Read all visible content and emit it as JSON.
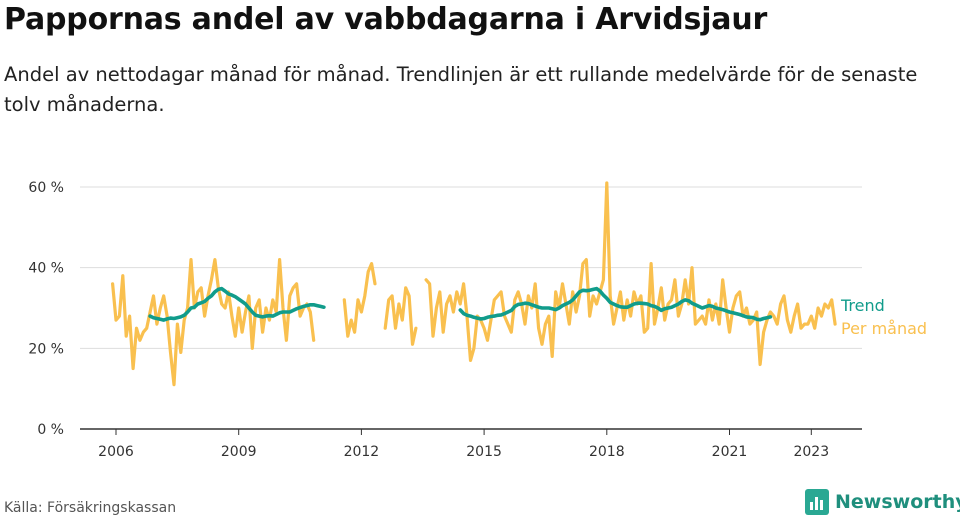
{
  "title": "Pappornas andel av vabbdagarna i Arvidsjaur",
  "subtitle": "Andel av nettodagar månad för månad. Trendlinjen är ett rullande medelvärde för de senaste tolv månaderna.",
  "source": "Källa: Försäkringskassan",
  "brand": "Newsworthy",
  "colors": {
    "monthly": "#f9c04f",
    "trend": "#119c8b",
    "grid": "#dddddd",
    "axis": "#333333",
    "brand": "#2aa893"
  },
  "chart_data": {
    "type": "line",
    "x_unit": "year (decimal, month start)",
    "y_unit": "percent",
    "ylim": [
      0,
      60
    ],
    "xlim": [
      2005.5,
      2024.0
    ],
    "grid": "horizontal",
    "y_ticks": [
      0,
      20,
      40,
      60
    ],
    "y_tick_labels": [
      "0 %",
      "20 %",
      "40 %",
      "60 %"
    ],
    "x_ticks": [
      2006,
      2009,
      2012,
      2015,
      2018,
      2021,
      2023
    ],
    "x_tick_labels": [
      "2006",
      "2009",
      "2012",
      "2015",
      "2018",
      "2021",
      "2023"
    ],
    "legend": [
      {
        "label": "Trend",
        "series": "trend"
      },
      {
        "label": "Per månad",
        "series": "monthly"
      }
    ],
    "series": [
      {
        "name": "Per månad",
        "key": "monthly",
        "segments": [
          {
            "start": 2005.917,
            "step": 0.08333,
            "values": [
              36,
              27,
              28,
              38,
              23,
              28,
              15,
              25,
              22,
              24,
              25,
              29,
              33,
              26,
              30,
              33,
              28,
              19,
              11,
              26,
              19,
              27,
              30,
              42,
              30,
              34,
              35,
              28,
              33,
              37,
              42,
              35,
              31,
              30,
              34,
              28,
              23,
              30,
              24,
              29,
              33,
              20,
              30,
              32,
              24,
              30,
              27,
              32,
              29,
              42,
              30,
              22,
              33,
              35,
              36,
              28,
              30,
              31,
              29,
              22
            ]
          },
          {
            "start": 2011.583,
            "step": 0.08333,
            "values": [
              32,
              23,
              27,
              24,
              32,
              29,
              33,
              39,
              41,
              36
            ]
          },
          {
            "start": 2012.583,
            "step": 0.08333,
            "values": [
              25,
              32,
              33,
              25,
              31,
              27,
              35,
              33,
              21,
              25
            ]
          },
          {
            "start": 2013.583,
            "step": 0.08333,
            "values": [
              37,
              36,
              23,
              30,
              34,
              24,
              31,
              33,
              29,
              34,
              31,
              36,
              28,
              17,
              20,
              28,
              27,
              25,
              22,
              27,
              32,
              33,
              34,
              28,
              26,
              24,
              32,
              34,
              31,
              26,
              33,
              30,
              36,
              25,
              21,
              26,
              28,
              18,
              34,
              30,
              36,
              31,
              26,
              34,
              29,
              33,
              41,
              42,
              28,
              33,
              31,
              34,
              37,
              61,
              33,
              26,
              30,
              34,
              27,
              32,
              28,
              34,
              31,
              33,
              24,
              25,
              41,
              26,
              30,
              35,
              27,
              31,
              32,
              37,
              28,
              31,
              37,
              31,
              40,
              26,
              27,
              28,
              26,
              32,
              27,
              31,
              26,
              37,
              30,
              24,
              30,
              33,
              34,
              28,
              30,
              26,
              27,
              29,
              16,
              24,
              27,
              29,
              28,
              26,
              31,
              33,
              27,
              24,
              28,
              31,
              25,
              26,
              26,
              28,
              25,
              30,
              28,
              31,
              30,
              32,
              26
            ]
          }
        ]
      },
      {
        "name": "Trend",
        "key": "trend",
        "segments": [
          {
            "start": 2006.833,
            "step": 0.08333,
            "values": [
              28,
              27.6,
              27.4,
              27.2,
              27,
              27.3,
              27.5,
              27.4,
              27.6,
              27.8,
              28.2,
              29,
              30,
              30.2,
              31,
              31.3,
              31.6,
              32.4,
              33,
              34,
              34.6,
              34.8,
              34.2,
              33.5,
              33.2,
              32.8,
              32.2,
              31.6,
              31,
              30,
              29,
              28.2,
              28,
              27.8,
              28,
              28.1,
              28,
              28.4,
              28.8,
              29,
              29,
              29,
              29.4,
              29.8,
              30.1,
              30.4,
              30.6,
              30.8,
              30.8,
              30.6,
              30.4,
              30.2
            ]
          },
          {
            "start": 2014.417,
            "step": 0.08333,
            "values": [
              29.5,
              28.6,
              28.2,
              28,
              27.7,
              27.5,
              27.3,
              27.4,
              27.7,
              27.9,
              28,
              28.2,
              28.3,
              28.6,
              29,
              29.4,
              30.4,
              30.9,
              31,
              31.2,
              31.1,
              30.8,
              30.5,
              30.2,
              30,
              30,
              30,
              29.8,
              29.6,
              30,
              30.6,
              31,
              31.4,
              32,
              33,
              34,
              34.4,
              34.3,
              34.4,
              34.6,
              34.8,
              34.2,
              33.2,
              32.4,
              31.4,
              31,
              30.6,
              30.3,
              30.2,
              30.2,
              30.6,
              31,
              31.2,
              31.2,
              31.1,
              31,
              30.6,
              30.4,
              30,
              29.4,
              29.8,
              30,
              30.2,
              30.6,
              31,
              31.6,
              32,
              31.8,
              31.2,
              30.8,
              30.4,
              30,
              30.3,
              30.6,
              30.4,
              30,
              29.8,
              29.6,
              29.3,
              29,
              28.8,
              28.6,
              28.4,
              28.1,
              27.8,
              27.7,
              27.6,
              27.2,
              27.1,
              27.4,
              27.6,
              27.8
            ]
          }
        ]
      }
    ]
  }
}
